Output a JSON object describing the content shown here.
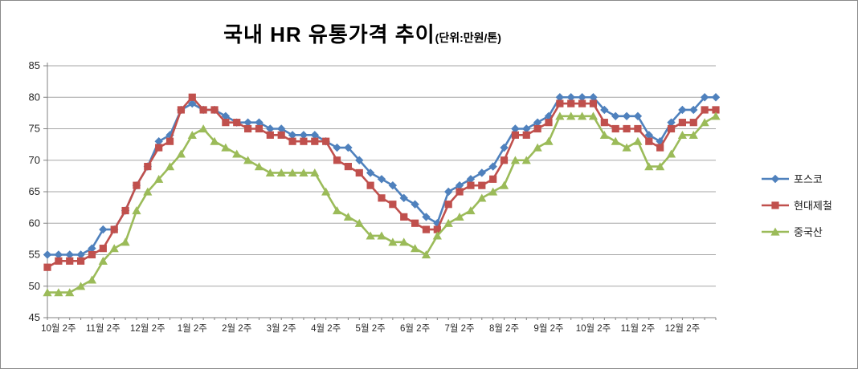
{
  "title": "국내 HR 유통가격 추이",
  "title_suffix": "(단위:만원/톤)",
  "chart_data": {
    "type": "line",
    "title": "국내 HR 유통가격 추이",
    "unit_note": "(단위:만원/톤)",
    "ylim": [
      45,
      85
    ],
    "ytick_step": 5,
    "grid": true,
    "legend_position": "right",
    "n_points": 61,
    "x_label_start_index": 1,
    "x_label_every": 4,
    "x_labels": [
      "10월 2주",
      "11월 2주",
      "12월 2주",
      "1월 2주",
      "2월 2주",
      "3월 2주",
      "4월 2주",
      "5월 2주",
      "6월 2주",
      "7월 2주",
      "8월 2주",
      "9월 2주",
      "10월 2주",
      "11월 2주",
      "12월 2주"
    ],
    "series": [
      {
        "name": "포스코",
        "color": "#4F81BD",
        "marker": "diamond",
        "values": [
          55,
          55,
          55,
          55,
          56,
          59,
          59,
          62,
          66,
          69,
          73,
          74,
          78,
          79,
          78,
          78,
          77,
          76,
          76,
          76,
          75,
          75,
          74,
          74,
          74,
          73,
          72,
          72,
          70,
          68,
          67,
          66,
          64,
          63,
          61,
          60,
          65,
          66,
          67,
          68,
          69,
          72,
          75,
          75,
          76,
          77,
          80,
          80,
          80,
          80,
          78,
          77,
          77,
          77,
          74,
          73,
          76,
          78,
          78,
          80,
          80
        ]
      },
      {
        "name": "현대제철",
        "color": "#C0504D",
        "marker": "square",
        "values": [
          53,
          54,
          54,
          54,
          55,
          56,
          59,
          62,
          66,
          69,
          72,
          73,
          78,
          80,
          78,
          78,
          76,
          76,
          75,
          75,
          74,
          74,
          73,
          73,
          73,
          73,
          70,
          69,
          68,
          66,
          64,
          63,
          61,
          60,
          59,
          59,
          63,
          65,
          66,
          66,
          67,
          70,
          74,
          74,
          75,
          76,
          79,
          79,
          79,
          79,
          76,
          75,
          75,
          75,
          73,
          72,
          75,
          76,
          76,
          78,
          78
        ]
      },
      {
        "name": "중국산",
        "color": "#9BBB59",
        "marker": "triangle",
        "values": [
          49,
          49,
          49,
          50,
          51,
          54,
          56,
          57,
          62,
          65,
          67,
          69,
          71,
          74,
          75,
          73,
          72,
          71,
          70,
          69,
          68,
          68,
          68,
          68,
          68,
          65,
          62,
          61,
          60,
          58,
          58,
          57,
          57,
          56,
          55,
          58,
          60,
          61,
          62,
          64,
          65,
          66,
          70,
          70,
          72,
          73,
          77,
          77,
          77,
          77,
          74,
          73,
          72,
          73,
          69,
          69,
          71,
          74,
          74,
          76,
          77
        ]
      }
    ]
  },
  "colors": {
    "gridline": "#A6A6A6",
    "axis": "#808080",
    "tick_label": "#262626",
    "background": "#FFFFFF"
  }
}
